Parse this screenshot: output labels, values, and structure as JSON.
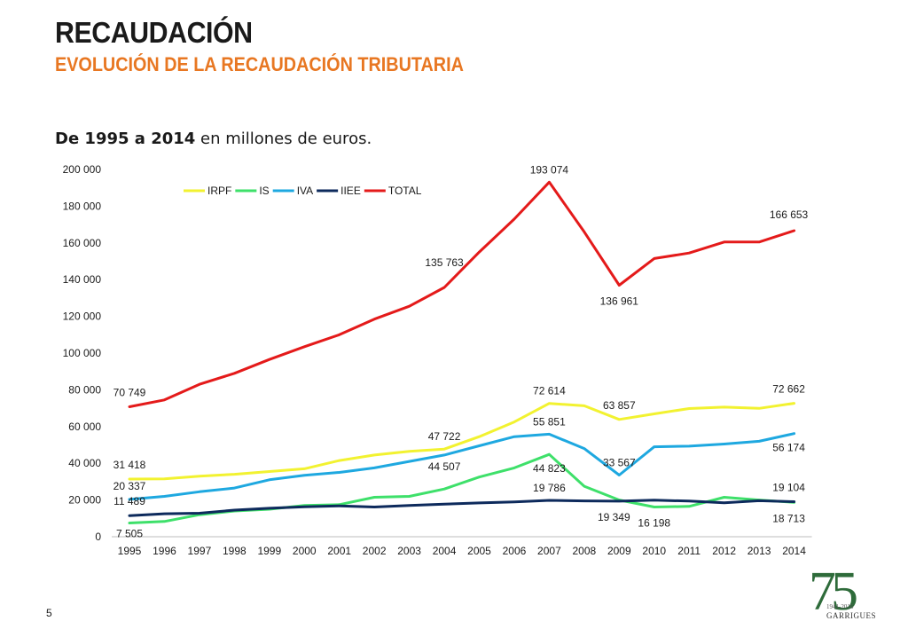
{
  "header": {
    "title": "RECAUDACIÓN",
    "subtitle": "EVOLUCIÓN DE LA RECAUDACIÓN TRIBUTARIA"
  },
  "intro": {
    "bold": "De 1995 a 2014",
    "rest": " en millones de euros."
  },
  "page_number": "5",
  "logo": {
    "mark": "75",
    "years": "1941-2016",
    "brand": "GARRIGUES"
  },
  "chart_data": {
    "type": "line",
    "title": "",
    "xlabel": "",
    "ylabel": "",
    "ylim": [
      0,
      200000
    ],
    "yticks": [
      0,
      20000,
      40000,
      60000,
      80000,
      100000,
      120000,
      140000,
      160000,
      180000,
      200000
    ],
    "ytick_labels": [
      "0",
      "20 000",
      "40 000",
      "60 000",
      "80 000",
      "100 000",
      "120 000",
      "140 000",
      "160 000",
      "180 000",
      "200 000"
    ],
    "grid": false,
    "legend": "top-center",
    "categories": [
      "1995",
      "1996",
      "1997",
      "1998",
      "1999",
      "2000",
      "2001",
      "2002",
      "2003",
      "2004",
      "2005",
      "2006",
      "2007",
      "2008",
      "2009",
      "2010",
      "2011",
      "2012",
      "2013",
      "2014"
    ],
    "series": [
      {
        "name": "IRPF",
        "color": "#f2f230",
        "values": [
          31418,
          31500,
          33000,
          34000,
          35500,
          37000,
          41500,
          44500,
          46500,
          47722,
          54500,
          62500,
          72614,
          71300,
          63857,
          66900,
          69800,
          70600,
          69900,
          72662
        ]
      },
      {
        "name": "IS",
        "color": "#3ee06a",
        "values": [
          7505,
          8300,
          12000,
          14000,
          15000,
          17000,
          17500,
          21500,
          22000,
          26000,
          32500,
          37500,
          44823,
          27500,
          20000,
          16198,
          16500,
          21500,
          20000,
          18713
        ]
      },
      {
        "name": "IVA",
        "color": "#1ea8e0",
        "values": [
          20337,
          22000,
          24500,
          26500,
          31000,
          33500,
          35000,
          37500,
          41000,
          44507,
          49500,
          54500,
          55851,
          48000,
          33567,
          49000,
          49300,
          50500,
          52000,
          56174
        ]
      },
      {
        "name": "IIEE",
        "color": "#0d2a5c",
        "values": [
          11489,
          12500,
          12800,
          14500,
          15500,
          16300,
          16800,
          16200,
          17000,
          17800,
          18400,
          19000,
          19786,
          19500,
          19349,
          19900,
          19400,
          18500,
          19600,
          19104
        ]
      },
      {
        "name": "TOTAL",
        "color": "#e41a1a",
        "values": [
          70749,
          74500,
          83000,
          89000,
          96500,
          103500,
          110000,
          118500,
          125500,
          135763,
          155000,
          173000,
          193074,
          166000,
          136961,
          151500,
          154500,
          160500,
          160500,
          166653
        ]
      }
    ],
    "annotations": [
      {
        "series": "TOTAL",
        "x": "1995",
        "text": "70 749"
      },
      {
        "series": "TOTAL",
        "x": "2004",
        "text": "135 763"
      },
      {
        "series": "TOTAL",
        "x": "2007",
        "text": "193 074"
      },
      {
        "series": "TOTAL",
        "x": "2009",
        "text": "136 961"
      },
      {
        "series": "TOTAL",
        "x": "2014",
        "text": "166 653"
      },
      {
        "series": "IRPF",
        "x": "1995",
        "text": "31 418"
      },
      {
        "series": "IRPF",
        "x": "2004",
        "text": "47 722"
      },
      {
        "series": "IRPF",
        "x": "2007",
        "text": "72 614"
      },
      {
        "series": "IRPF",
        "x": "2009",
        "text": "63 857"
      },
      {
        "series": "IRPF",
        "x": "2014",
        "text": "72 662"
      },
      {
        "series": "IVA",
        "x": "1995",
        "text": "20 337"
      },
      {
        "series": "IVA",
        "x": "2004",
        "text": "44 507"
      },
      {
        "series": "IVA",
        "x": "2007",
        "text": "55 851"
      },
      {
        "series": "IVA",
        "x": "2009",
        "text": "33 567"
      },
      {
        "series": "IVA",
        "x": "2014",
        "text": "56 174"
      },
      {
        "series": "IS",
        "x": "1995",
        "text": "7 505"
      },
      {
        "series": "IS",
        "x": "2007",
        "text": "44 823"
      },
      {
        "series": "IS",
        "x": "2010",
        "text": "16 198"
      },
      {
        "series": "IS",
        "x": "2014",
        "text": "18 713"
      },
      {
        "series": "IIEE",
        "x": "1995",
        "text": "11 489"
      },
      {
        "series": "IIEE",
        "x": "2007",
        "text": "19 786"
      },
      {
        "series": "IIEE",
        "x": "2009",
        "text": "19 349"
      },
      {
        "series": "IIEE",
        "x": "2014",
        "text": "19 104"
      }
    ]
  }
}
